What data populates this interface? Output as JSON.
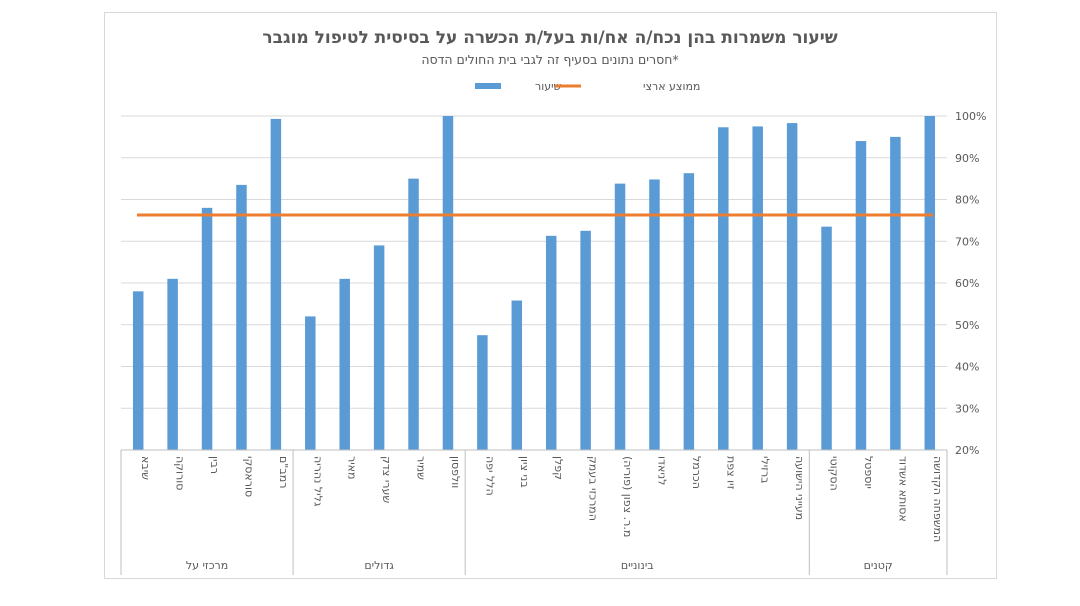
{
  "chart_data": {
    "type": "bar",
    "title": "שיעור משמרות בהן נכח/ה אח/ות בעל/ת הכשרה על בסיסית לטיפול מוגבר",
    "subtitle": "*חסרים נתונים בסעיף זה לגבי בית החולים הדסה",
    "legend": {
      "placement": "top",
      "bar_label": "שיעור",
      "line_label": "ממוצע ארצי"
    },
    "ylim": [
      20,
      100
    ],
    "yticks": [
      "20%",
      "30%",
      "40%",
      "50%",
      "60%",
      "70%",
      "80%",
      "90%",
      "100%"
    ],
    "grid": true,
    "y_axis_side": "right",
    "bar_color": "#5b9bd5",
    "line_color": "#ed7d31",
    "national_average": 76.3,
    "groups": [
      {
        "label": "מרכזי על",
        "categories": [
          "שיבא",
          "סורוקה",
          "רבין",
          "סוראסקי",
          "רמב\"ם"
        ],
        "values": [
          58,
          61,
          78,
          83.5,
          99.3
        ]
      },
      {
        "label": "גדולים",
        "categories": [
          "גליל נהריה",
          "מאיר",
          "שערי צדק",
          "שמיר",
          "וולפסון"
        ],
        "values": [
          52,
          61,
          69,
          85,
          100
        ]
      },
      {
        "label": "בינוניים",
        "categories": [
          "הלל יפה",
          "בני ציון",
          "קפלן",
          "המרכזי בעמק",
          "מ.ר. צפון (פוריה)",
          "לניאדו",
          "הכרמל",
          "זיו צפת",
          "ברזילי",
          "מעייני הישועה"
        ],
        "values": [
          47.5,
          55.8,
          71.3,
          72.5,
          83.8,
          84.8,
          86.3,
          97.3,
          97.5,
          98.3
        ]
      },
      {
        "label": "קטנים",
        "categories": [
          "הסקוטי",
          "יוספטל",
          "אסותא אשדוד",
          "המשפחה הקדושה"
        ],
        "values": [
          73.5,
          94,
          95,
          100
        ]
      }
    ]
  }
}
